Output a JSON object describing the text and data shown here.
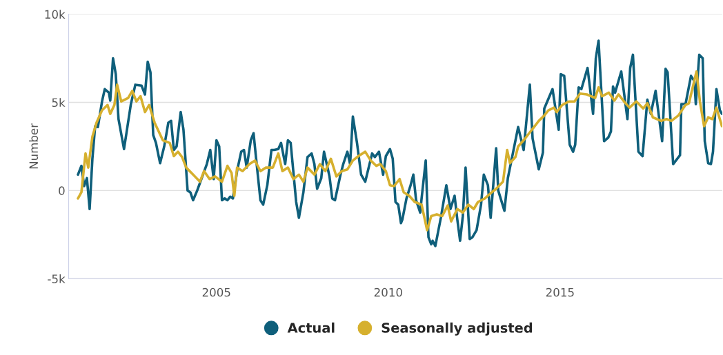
{
  "chart_data": {
    "type": "line",
    "ylabel": "Number",
    "grid": "y",
    "legend": "bottom",
    "line_style": "solid",
    "xlim": [
      2000.7,
      2019.72
    ],
    "xticks": [
      2005,
      2010,
      2015
    ],
    "ylim": [
      -5000,
      10000
    ],
    "yticks": [
      {
        "value": -5000,
        "label": "-5k"
      },
      0,
      {
        "value": 5000,
        "label": "5k"
      },
      {
        "value": 10000,
        "label": "10k"
      }
    ],
    "series": [
      {
        "name": "Actual",
        "color": "#0f5f7b",
        "x": [
          2000.97,
          2001.07,
          2001.15,
          2001.23,
          2001.31,
          2001.39,
          2001.47,
          2001.55,
          2001.67,
          2001.75,
          2001.87,
          2001.91,
          2001.99,
          2002.07,
          2002.15,
          2002.31,
          2002.51,
          2002.64,
          2002.82,
          2002.92,
          2003.0,
          2003.08,
          2003.16,
          2003.24,
          2003.36,
          2003.48,
          2003.6,
          2003.68,
          2003.76,
          2003.84,
          2003.96,
          2004.04,
          2004.16,
          2004.24,
          2004.32,
          2004.44,
          2004.72,
          2004.82,
          2004.92,
          2005.0,
          2005.08,
          2005.16,
          2005.24,
          2005.32,
          2005.4,
          2005.48,
          2005.6,
          2005.72,
          2005.8,
          2005.88,
          2006.0,
          2006.08,
          2006.16,
          2006.28,
          2006.36,
          2006.48,
          2006.6,
          2006.68,
          2006.8,
          2006.88,
          2007.0,
          2007.08,
          2007.16,
          2007.32,
          2007.4,
          2007.53,
          2007.65,
          2007.77,
          2007.85,
          2007.93,
          2008.05,
          2008.13,
          2008.29,
          2008.37,
          2008.45,
          2008.61,
          2008.69,
          2008.81,
          2008.89,
          2008.97,
          2009.09,
          2009.21,
          2009.33,
          2009.53,
          2009.61,
          2009.73,
          2009.85,
          2009.93,
          2010.05,
          2010.13,
          2010.21,
          2010.29,
          2010.37,
          2010.41,
          2010.53,
          2010.65,
          2010.73,
          2010.81,
          2010.93,
          2010.97,
          2011.09,
          2011.17,
          2011.25,
          2011.29,
          2011.37,
          2011.53,
          2011.69,
          2011.81,
          2011.93,
          2012.01,
          2012.09,
          2012.17,
          2012.25,
          2012.37,
          2012.45,
          2012.57,
          2012.7,
          2012.78,
          2012.9,
          2012.98,
          2013.14,
          2013.2,
          2013.38,
          2013.48,
          2013.78,
          2013.94,
          2014.12,
          2014.2,
          2014.38,
          2014.5,
          2014.54,
          2014.78,
          2014.96,
          2015.02,
          2015.12,
          2015.28,
          2015.38,
          2015.44,
          2015.54,
          2015.62,
          2015.8,
          2015.96,
          2016.04,
          2016.12,
          2016.28,
          2016.4,
          2016.48,
          2016.54,
          2016.6,
          2016.78,
          2016.96,
          2017.04,
          2017.12,
          2017.28,
          2017.4,
          2017.54,
          2017.64,
          2017.78,
          2017.97,
          2018.07,
          2018.13,
          2018.29,
          2018.49,
          2018.53,
          2018.65,
          2018.81,
          2018.91,
          2018.95,
          2019.05,
          2019.15,
          2019.21,
          2019.31,
          2019.39,
          2019.45,
          2019.55,
          2019.65,
          2019.71
        ],
        "values": [
          900,
          1400,
          250,
          700,
          -1050,
          1800,
          3650,
          3600,
          5050,
          5750,
          5550,
          5100,
          7500,
          6600,
          4050,
          2350,
          4900,
          6000,
          5950,
          5450,
          7300,
          6700,
          3150,
          2700,
          1550,
          2500,
          3850,
          3950,
          2300,
          2500,
          4450,
          3450,
          0,
          -100,
          -550,
          0,
          1500,
          2300,
          650,
          2850,
          2500,
          -550,
          -450,
          -550,
          -350,
          -450,
          1100,
          2200,
          2300,
          1300,
          2850,
          3250,
          1700,
          -550,
          -800,
          300,
          2300,
          2300,
          2350,
          2700,
          1500,
          2850,
          2700,
          -650,
          -1550,
          -100,
          1900,
          2100,
          1500,
          100,
          700,
          2200,
          800,
          -450,
          -550,
          900,
          1500,
          2200,
          1500,
          4200,
          2700,
          900,
          500,
          2100,
          1900,
          2200,
          900,
          1950,
          2350,
          1800,
          -650,
          -800,
          -1850,
          -1650,
          -450,
          300,
          900,
          -550,
          -1250,
          -450,
          1700,
          -2650,
          -3050,
          -2850,
          -3150,
          -1550,
          300,
          -1050,
          -300,
          -1650,
          -2850,
          -1450,
          1300,
          -2750,
          -2650,
          -2250,
          -800,
          900,
          300,
          -1550,
          2400,
          0,
          -1150,
          700,
          3600,
          2300,
          6000,
          2950,
          1200,
          2150,
          4650,
          5750,
          3450,
          6600,
          6500,
          2600,
          2200,
          2600,
          5850,
          5750,
          6950,
          4350,
          7500,
          8500,
          2800,
          3000,
          3350,
          5900,
          5550,
          6750,
          4050,
          6950,
          7700,
          2200,
          1950,
          5150,
          4350,
          5650,
          2800,
          6900,
          6700,
          1500,
          2000,
          4900,
          4900,
          6500,
          6200,
          4900,
          7700,
          7500,
          2800,
          1550,
          1500,
          2200,
          5750,
          4550,
          4350
        ]
      },
      {
        "name": "Seasonally adjusted",
        "color": "#d6b02e",
        "x": [
          2000.97,
          2001.07,
          2001.19,
          2001.27,
          2001.39,
          2001.51,
          2001.67,
          2001.83,
          2001.91,
          2002.03,
          2002.11,
          2002.23,
          2002.43,
          2002.55,
          2002.67,
          2002.79,
          2002.92,
          2003.04,
          2003.2,
          2003.44,
          2003.64,
          2003.76,
          2003.88,
          2004.0,
          2004.12,
          2004.32,
          2004.52,
          2004.64,
          2004.8,
          2004.96,
          2005.16,
          2005.32,
          2005.44,
          2005.52,
          2005.6,
          2005.76,
          2005.96,
          2006.12,
          2006.28,
          2006.44,
          2006.64,
          2006.8,
          2006.92,
          2007.08,
          2007.24,
          2007.4,
          2007.53,
          2007.65,
          2007.85,
          2008.01,
          2008.17,
          2008.33,
          2008.49,
          2008.65,
          2008.81,
          2008.97,
          2009.13,
          2009.33,
          2009.49,
          2009.65,
          2009.77,
          2009.93,
          2010.05,
          2010.17,
          2010.33,
          2010.45,
          2010.61,
          2010.77,
          2010.97,
          2011.13,
          2011.25,
          2011.41,
          2011.57,
          2011.73,
          2011.83,
          2012.01,
          2012.17,
          2012.33,
          2012.49,
          2012.61,
          2012.81,
          2012.98,
          2013.14,
          2013.34,
          2013.46,
          2013.54,
          2013.7,
          2013.78,
          2013.94,
          2014.1,
          2014.26,
          2014.38,
          2014.54,
          2014.66,
          2014.82,
          2014.9,
          2015.06,
          2015.26,
          2015.42,
          2015.58,
          2015.78,
          2016.02,
          2016.12,
          2016.22,
          2016.42,
          2016.58,
          2016.7,
          2016.86,
          2017.02,
          2017.22,
          2017.42,
          2017.54,
          2017.7,
          2017.94,
          2018.1,
          2018.24,
          2018.44,
          2018.65,
          2018.75,
          2018.97,
          2019.07,
          2019.19,
          2019.31,
          2019.43,
          2019.55,
          2019.71
        ],
        "values": [
          -450,
          -100,
          2100,
          1300,
          3050,
          3850,
          4550,
          4850,
          4350,
          4850,
          6000,
          5050,
          5250,
          5650,
          5050,
          5350,
          4450,
          4850,
          3850,
          2850,
          2700,
          1950,
          2200,
          1900,
          1300,
          900,
          500,
          1100,
          650,
          800,
          500,
          1400,
          1000,
          -300,
          1300,
          1100,
          1500,
          1700,
          1100,
          1300,
          1300,
          2100,
          1100,
          1300,
          650,
          900,
          500,
          1300,
          900,
          1500,
          1100,
          1800,
          800,
          1100,
          1200,
          1700,
          1950,
          2200,
          1700,
          1400,
          1500,
          1100,
          300,
          250,
          650,
          -100,
          -300,
          -650,
          -800,
          -2250,
          -1450,
          -1350,
          -1450,
          -850,
          -1750,
          -1050,
          -1250,
          -800,
          -1050,
          -650,
          -450,
          -150,
          100,
          500,
          2300,
          1550,
          1900,
          2500,
          2850,
          3250,
          3650,
          3950,
          4250,
          4550,
          4700,
          4450,
          4850,
          5050,
          5050,
          5500,
          5450,
          5250,
          5850,
          5350,
          5550,
          5100,
          5450,
          5050,
          4700,
          5050,
          4650,
          4950,
          4150,
          3950,
          4050,
          3950,
          4250,
          4850,
          4950,
          6750,
          5050,
          3650,
          4150,
          4050,
          4700,
          3650
        ]
      }
    ]
  }
}
